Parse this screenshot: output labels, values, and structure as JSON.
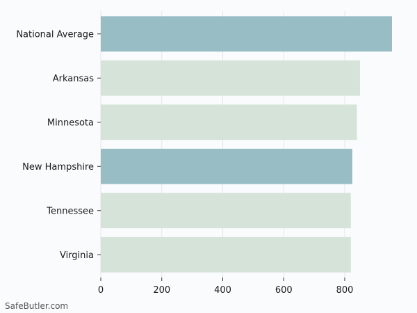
{
  "chart_data": {
    "type": "bar",
    "orientation": "horizontal",
    "categories": [
      "National Average",
      "Arkansas",
      "Minnesota",
      "New Hampshire",
      "Tennessee",
      "Virginia"
    ],
    "values": [
      955,
      850,
      840,
      825,
      820,
      820
    ],
    "highlighted": [
      true,
      false,
      false,
      true,
      false,
      false
    ],
    "title": "",
    "xlabel": "",
    "ylabel": "",
    "xlim": [
      0,
      955
    ],
    "xticks": [
      0,
      200,
      400,
      600,
      800
    ],
    "grid": "vertical",
    "colors": {
      "highlight": "#98bdc5",
      "default": "#d5e3d9",
      "grid": "#e6e6e6",
      "axis": "#333333"
    }
  },
  "watermark": "SafeButler.com"
}
